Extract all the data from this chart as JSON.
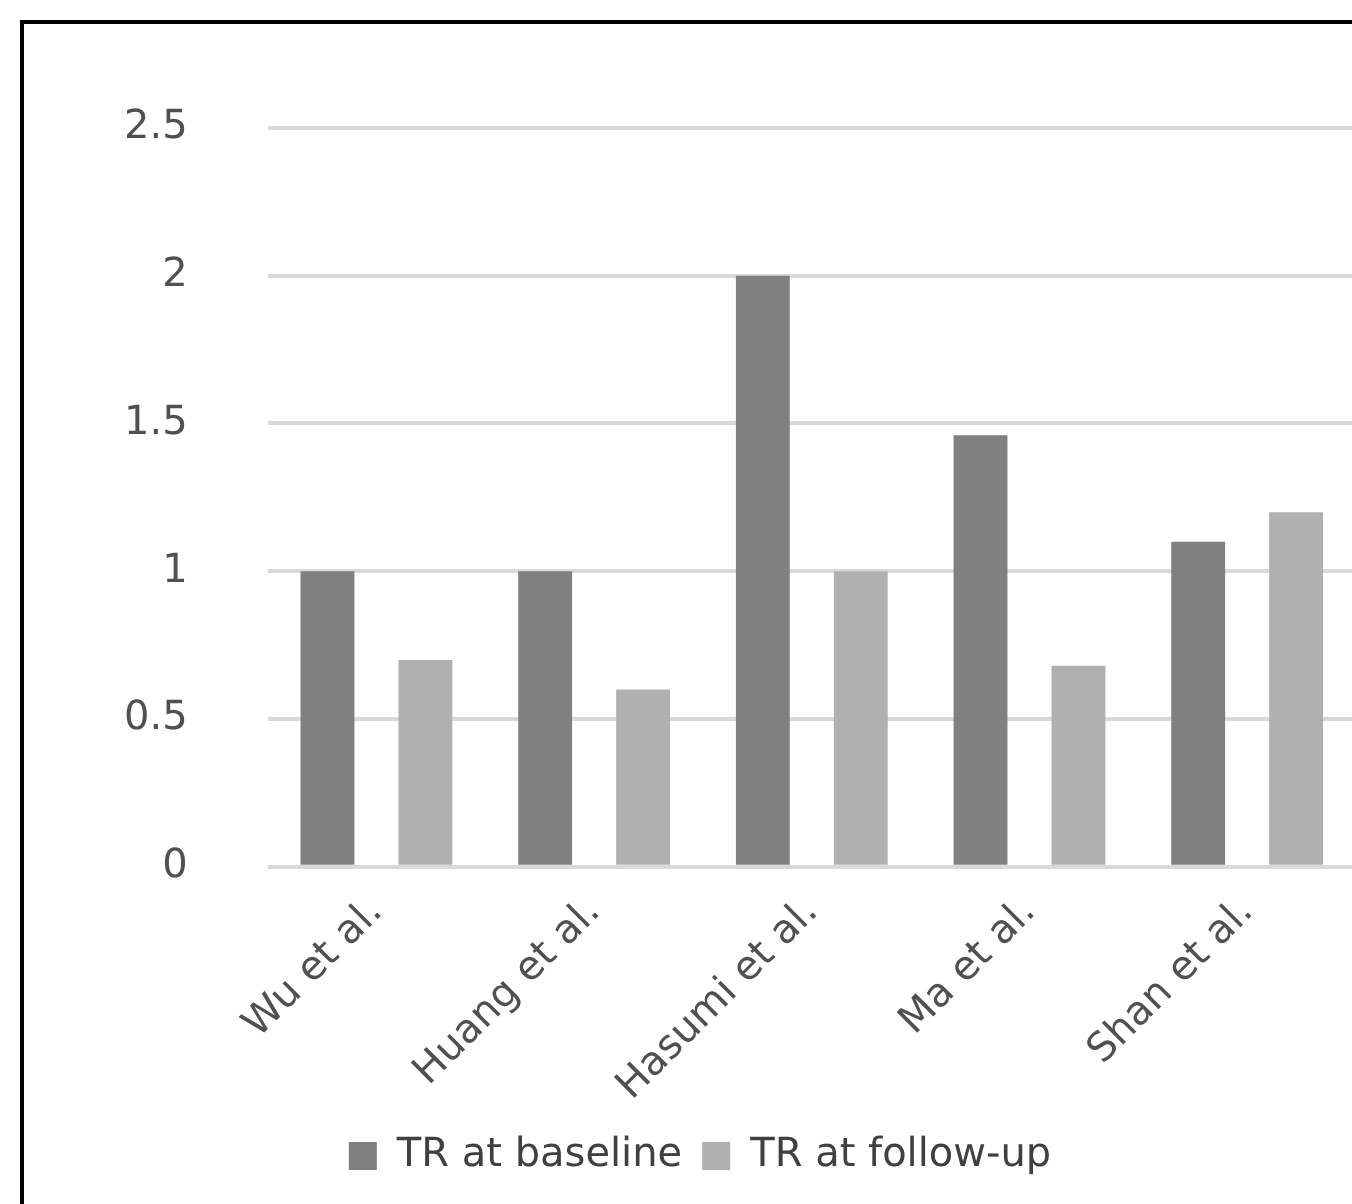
{
  "chart_data": {
    "type": "bar",
    "categories": [
      "Wu et al.",
      "Huang et al.",
      "Hasumi et al.",
      "Ma et al.",
      "Shan et al."
    ],
    "series": [
      {
        "name": "TR at baseline",
        "color": "#808080",
        "values": [
          1,
          1,
          2,
          1.46,
          1.1
        ]
      },
      {
        "name": "TR at follow-up",
        "color": "#b0b0b0",
        "values": [
          0.7,
          0.6,
          1,
          0.68,
          1.2
        ]
      }
    ],
    "ylim": [
      0,
      2.5
    ],
    "yticks": [
      0,
      {
        "value": 0.5,
        "label": "0.5"
      },
      1,
      {
        "value": 1.5,
        "label": "1.5"
      },
      2,
      {
        "value": 2.5,
        "label": "2.5"
      }
    ],
    "grid": "y",
    "legend": "bottom"
  }
}
